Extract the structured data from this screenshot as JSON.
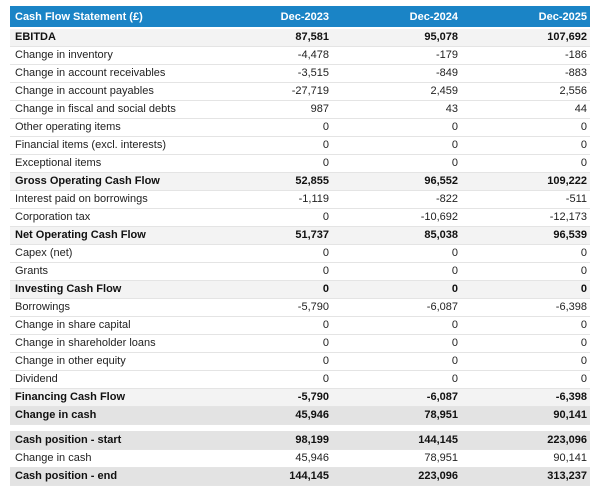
{
  "chart_data": {
    "type": "table",
    "title": "Cash Flow Statement (£)",
    "columns": [
      "Dec-2023",
      "Dec-2024",
      "Dec-2025"
    ],
    "rows": [
      {
        "label": "EBITDA",
        "values": [
          "87,581",
          "95,078",
          "107,692"
        ],
        "style": "section"
      },
      {
        "label": "Change in inventory",
        "values": [
          "-4,478",
          "-179",
          "-186"
        ],
        "style": "normal"
      },
      {
        "label": "Change in account receivables",
        "values": [
          "-3,515",
          "-849",
          "-883"
        ],
        "style": "normal"
      },
      {
        "label": "Change in account payables",
        "values": [
          "-27,719",
          "2,459",
          "2,556"
        ],
        "style": "normal"
      },
      {
        "label": "Change in fiscal and social debts",
        "values": [
          "987",
          "43",
          "44"
        ],
        "style": "normal"
      },
      {
        "label": "Other operating items",
        "values": [
          "0",
          "0",
          "0"
        ],
        "style": "normal"
      },
      {
        "label": "Financial items (excl. interests)",
        "values": [
          "0",
          "0",
          "0"
        ],
        "style": "normal"
      },
      {
        "label": "Exceptional items",
        "values": [
          "0",
          "0",
          "0"
        ],
        "style": "normal"
      },
      {
        "label": "Gross Operating Cash Flow",
        "values": [
          "52,855",
          "96,552",
          "109,222"
        ],
        "style": "section"
      },
      {
        "label": "Interest paid on borrowings",
        "values": [
          "-1,119",
          "-822",
          "-511"
        ],
        "style": "normal"
      },
      {
        "label": "Corporation tax",
        "values": [
          "0",
          "-10,692",
          "-12,173"
        ],
        "style": "normal"
      },
      {
        "label": "Net Operating Cash Flow",
        "values": [
          "51,737",
          "85,038",
          "96,539"
        ],
        "style": "section"
      },
      {
        "label": "Capex (net)",
        "values": [
          "0",
          "0",
          "0"
        ],
        "style": "normal"
      },
      {
        "label": "Grants",
        "values": [
          "0",
          "0",
          "0"
        ],
        "style": "normal"
      },
      {
        "label": "Investing Cash Flow",
        "values": [
          "0",
          "0",
          "0"
        ],
        "style": "section"
      },
      {
        "label": "Borrowings",
        "values": [
          "-5,790",
          "-6,087",
          "-6,398"
        ],
        "style": "normal"
      },
      {
        "label": "Change in share capital",
        "values": [
          "0",
          "0",
          "0"
        ],
        "style": "normal"
      },
      {
        "label": "Change in shareholder loans",
        "values": [
          "0",
          "0",
          "0"
        ],
        "style": "normal"
      },
      {
        "label": "Change in other equity",
        "values": [
          "0",
          "0",
          "0"
        ],
        "style": "normal"
      },
      {
        "label": "Dividend",
        "values": [
          "0",
          "0",
          "0"
        ],
        "style": "normal"
      },
      {
        "label": "Financing Cash Flow",
        "values": [
          "-5,790",
          "-6,087",
          "-6,398"
        ],
        "style": "section"
      },
      {
        "label": "Change in cash",
        "values": [
          "45,946",
          "78,951",
          "90,141"
        ],
        "style": "highlight"
      },
      {
        "spacer": true
      },
      {
        "label": "Cash position - start",
        "values": [
          "98,199",
          "144,145",
          "223,096"
        ],
        "style": "highlight"
      },
      {
        "label": "Change in cash",
        "values": [
          "45,946",
          "78,951",
          "90,141"
        ],
        "style": "normal"
      },
      {
        "label": "Cash position - end",
        "values": [
          "144,145",
          "223,096",
          "313,237"
        ],
        "style": "highlight"
      }
    ]
  },
  "colors": {
    "header_bg": "#1a84c6",
    "header_fg": "#ffffff",
    "section_bg": "#f3f3f3",
    "highlight_bg": "#e3e3e3"
  }
}
